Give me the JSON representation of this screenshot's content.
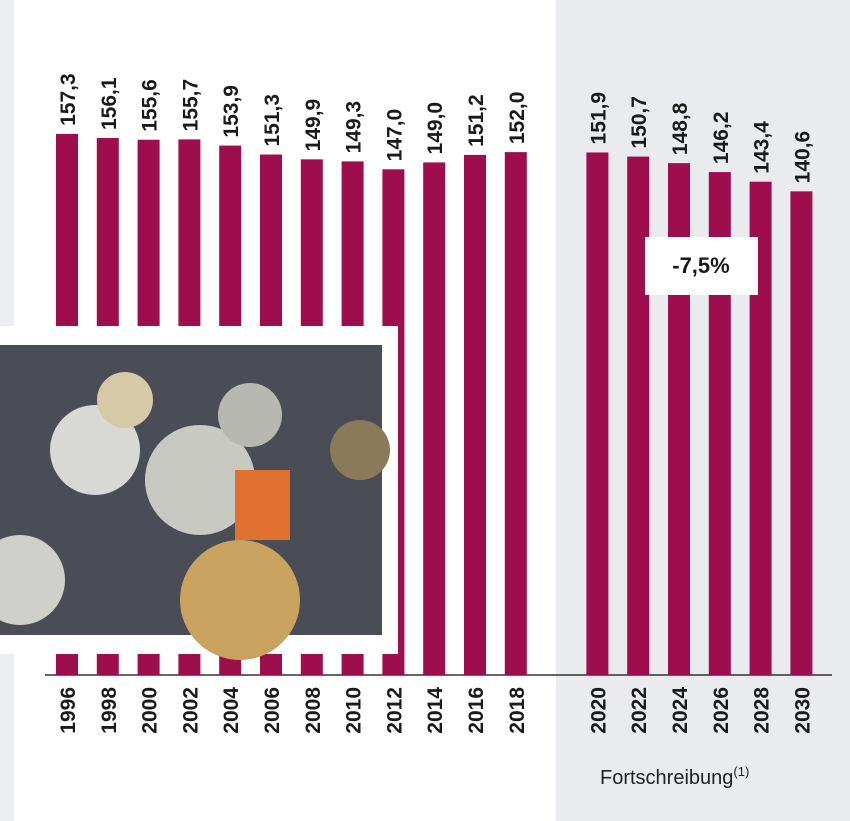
{
  "chart_data": {
    "type": "bar",
    "categories": [
      "1996",
      "1998",
      "2000",
      "2002",
      "2004",
      "2006",
      "2008",
      "2010",
      "2012",
      "2014",
      "2016",
      "2018",
      "2020",
      "2022",
      "2024",
      "2026",
      "2028",
      "2030"
    ],
    "values": [
      157.3,
      156.1,
      155.6,
      155.7,
      153.9,
      151.3,
      149.9,
      149.3,
      147.0,
      149.0,
      151.2,
      152.0,
      151.9,
      150.7,
      148.8,
      146.2,
      143.4,
      140.6
    ],
    "value_labels": [
      "157,3",
      "156,1",
      "155,6",
      "155,7",
      "153,9",
      "151,3",
      "149,9",
      "149,3",
      "147,0",
      "149,0",
      "151,2",
      "152,0",
      "151,9",
      "150,7",
      "148,8",
      "146,2",
      "143,4",
      "140,6"
    ],
    "color": "#9e0d4c",
    "ylim": [
      0,
      190
    ],
    "annotation": "-7,5%",
    "projection_label": "Fortschreibung",
    "projection_note": "(1)"
  }
}
